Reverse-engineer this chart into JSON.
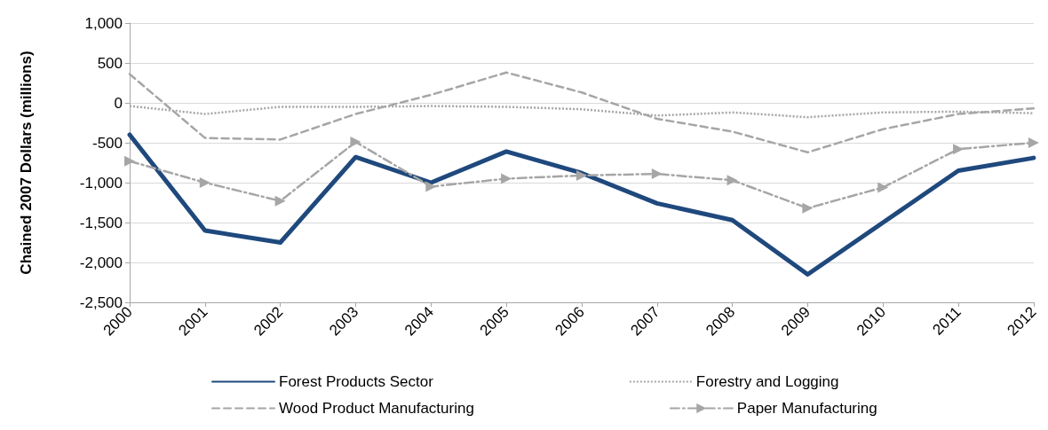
{
  "chart_data": {
    "type": "line",
    "ylabel": "Chained 2007 Dollars (millions)",
    "categories": [
      "2000",
      "2001",
      "2002",
      "2003",
      "2004",
      "2005",
      "2006",
      "2007",
      "2008",
      "2009",
      "2010",
      "2011",
      "2012"
    ],
    "series": [
      {
        "name": "Forest Products Sector",
        "color": "#1f497d",
        "line_style": "solid",
        "marker": "none",
        "values": [
          -400,
          -1600,
          -1750,
          -680,
          -1000,
          -610,
          -880,
          -1260,
          -1470,
          -2150,
          -1500,
          -850,
          -690
        ]
      },
      {
        "name": "Forestry and Logging",
        "color": "#a6a6a6",
        "line_style": "dotted",
        "marker": "none",
        "values": [
          -40,
          -140,
          -50,
          -50,
          -40,
          -50,
          -80,
          -160,
          -120,
          -180,
          -120,
          -110,
          -130
        ]
      },
      {
        "name": "Wood Product Manufacturing",
        "color": "#a6a6a6",
        "line_style": "dashed",
        "marker": "none",
        "values": [
          360,
          -440,
          -460,
          -140,
          100,
          380,
          130,
          -200,
          -360,
          -620,
          -330,
          -140,
          -70
        ]
      },
      {
        "name": "Paper Manufacturing",
        "color": "#a6a6a6",
        "line_style": "dashdot",
        "marker": "triangle",
        "values": [
          -730,
          -1000,
          -1230,
          -490,
          -1050,
          -950,
          -910,
          -890,
          -970,
          -1320,
          -1060,
          -580,
          -500
        ]
      }
    ],
    "ylim": [
      -2500,
      1000
    ],
    "yticks": [
      {
        "value": -2500,
        "label": "-2,500"
      },
      {
        "value": -2000,
        "label": "-2,000"
      },
      {
        "value": -1500,
        "label": "-1,500"
      },
      {
        "value": -1000,
        "label": "-1,000"
      },
      -500,
      0,
      500,
      {
        "value": 1000,
        "label": "1,000"
      }
    ],
    "grid": "y",
    "legend": "bottom"
  }
}
